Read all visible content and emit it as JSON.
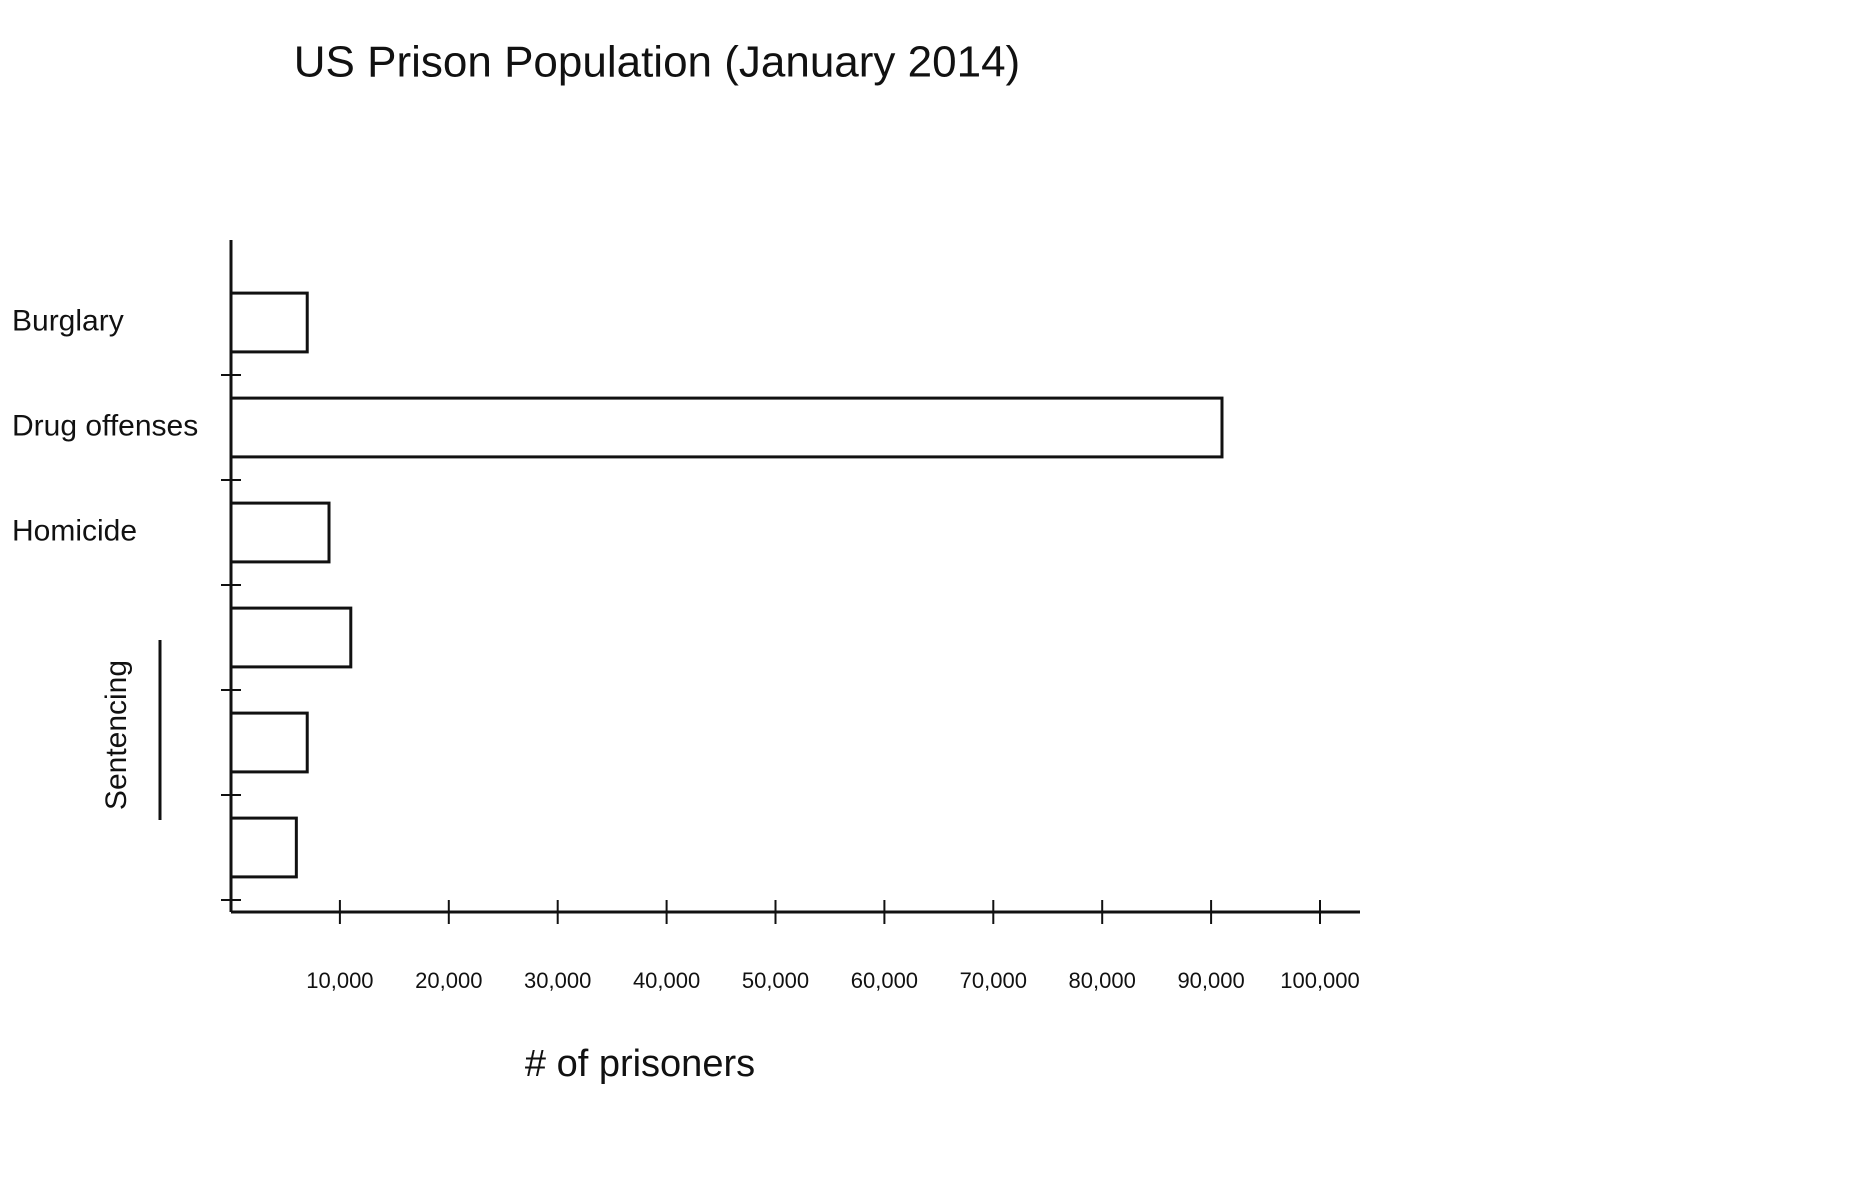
{
  "chart_data": {
    "type": "barh",
    "title": "US Prison Population (January 2014)",
    "x_label": "# of prisoners",
    "annotation": "Sentencing",
    "categories": [
      "Burglary",
      "Drug offenses",
      "Homicide",
      null,
      null,
      null
    ],
    "values": [
      7000,
      91000,
      9000,
      11000,
      7000,
      6000
    ],
    "color": "#ffffff",
    "xlim": [
      0,
      100000
    ],
    "xticks": [
      {
        "value": 10000,
        "label": "10,000"
      },
      {
        "value": 20000,
        "label": "20,000"
      },
      {
        "value": 30000,
        "label": "30,000"
      },
      {
        "value": 40000,
        "label": "40,000"
      },
      {
        "value": 50000,
        "label": "50,000"
      },
      {
        "value": 60000,
        "label": "60,000"
      },
      {
        "value": 70000,
        "label": "70,000"
      },
      {
        "value": 80000,
        "label": "80,000"
      },
      {
        "value": 90000,
        "label": "90,000"
      },
      {
        "value": 100000,
        "label": "100,000"
      }
    ],
    "grid": false
  }
}
